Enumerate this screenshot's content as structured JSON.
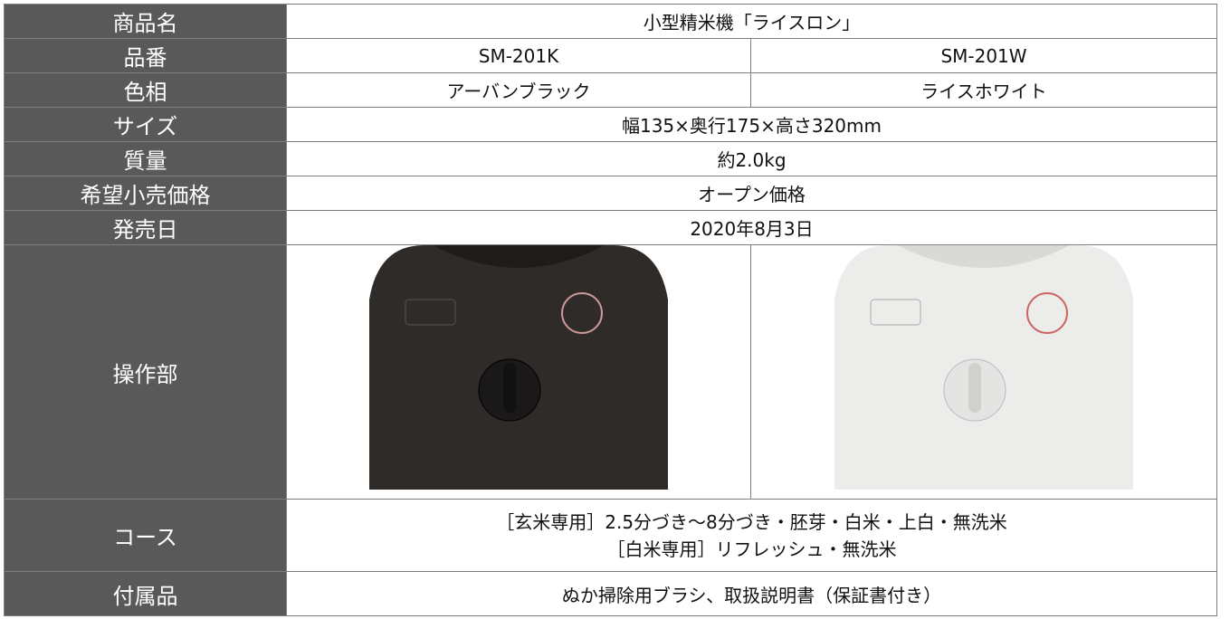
{
  "table": {
    "rows": [
      {
        "label": "商品名",
        "cells": [
          "小型精米機「ライスロン」"
        ]
      },
      {
        "label": "品番",
        "cells": [
          "SM-201K",
          "SM-201W"
        ]
      },
      {
        "label": "色相",
        "cells": [
          "アーバンブラック",
          "ライスホワイト"
        ]
      },
      {
        "label": "サイズ",
        "cells": [
          "幅135×奥行175×高さ320mm"
        ]
      },
      {
        "label": "質量",
        "cells": [
          "約2.0kg"
        ]
      },
      {
        "label": "希望小売価格",
        "cells": [
          "オープン価格"
        ]
      },
      {
        "label": "発売日",
        "cells": [
          "2020年8月3日"
        ]
      },
      {
        "label": "操作部",
        "cells": []
      },
      {
        "label": "コース",
        "cells": [
          "［玄米専用］2.5分づき～8分づき・胚芽・白米・上白・無洗米",
          "［白米専用］リフレッシュ・無洗米"
        ]
      },
      {
        "label": "付属品",
        "cells": [
          "ぬか掃除用ブラシ、取扱説明書（保証書付き）"
        ]
      }
    ]
  }
}
